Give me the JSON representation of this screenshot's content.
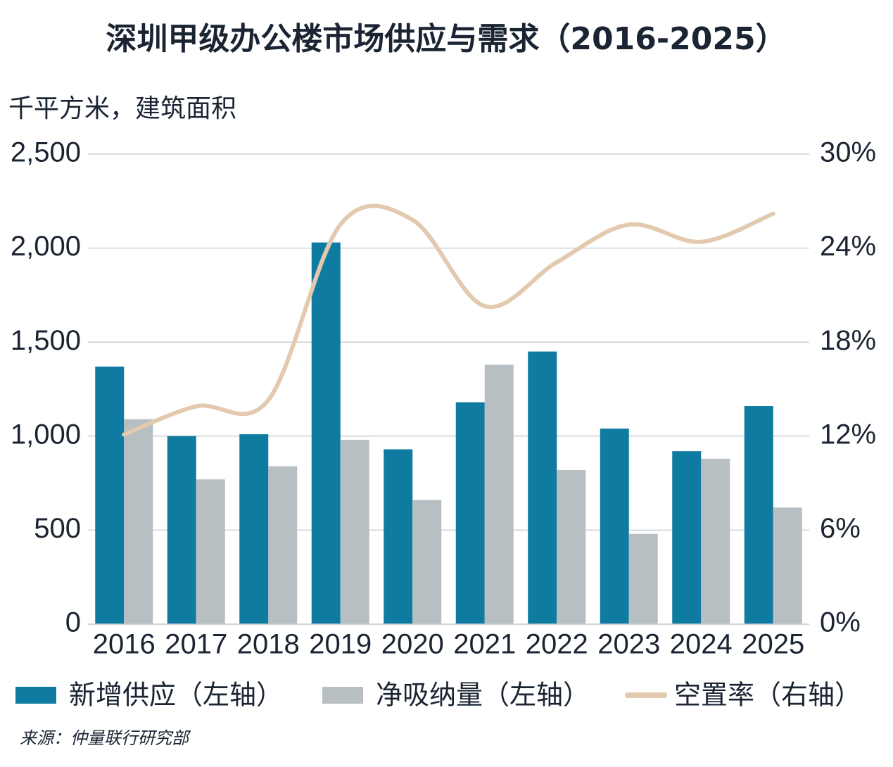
{
  "chart_data": {
    "type": "bar",
    "title": "深圳甲级办公楼市场供应与需求（2016-2025）",
    "y_label": "千平方米，建筑面积",
    "source": "来源：仲量联行研究部",
    "categories": [
      "2016",
      "2017",
      "2018",
      "2019",
      "2020",
      "2021",
      "2022",
      "2023",
      "2024",
      "2025"
    ],
    "series": [
      {
        "name": "新增供应（左轴）",
        "color": "#0f7ba0",
        "values": [
          1370,
          1000,
          1010,
          2030,
          930,
          1180,
          1450,
          1040,
          920,
          1160
        ]
      },
      {
        "name": "净吸纳量（左轴）",
        "color": "#b7bfc2",
        "values": [
          1090,
          770,
          840,
          980,
          660,
          1380,
          820,
          480,
          880,
          620
        ]
      },
      {
        "name": "空置率（右轴）",
        "color": "#e3c9ae",
        "type": "line",
        "axis": "y2",
        "values": [
          12.1,
          13.9,
          14.3,
          25.5,
          25.8,
          20.3,
          23.1,
          25.5,
          24.4,
          26.2
        ]
      }
    ],
    "ylim": [
      0,
      2500
    ],
    "yticks": [
      0,
      500,
      {
        "value": 1000,
        "label": "1,000"
      },
      {
        "value": 1500,
        "label": "1,500"
      },
      {
        "value": 2000,
        "label": "2,000"
      },
      {
        "value": 2500,
        "label": "2,500"
      }
    ],
    "y2lim": [
      0,
      30
    ],
    "y2ticks": [
      {
        "value": 0,
        "label": "0%"
      },
      {
        "value": 6,
        "label": "6%"
      },
      {
        "value": 12,
        "label": "12%"
      },
      {
        "value": 18,
        "label": "18%"
      },
      {
        "value": 24,
        "label": "24%"
      },
      {
        "value": 30,
        "label": "30%"
      }
    ],
    "grid": true
  }
}
